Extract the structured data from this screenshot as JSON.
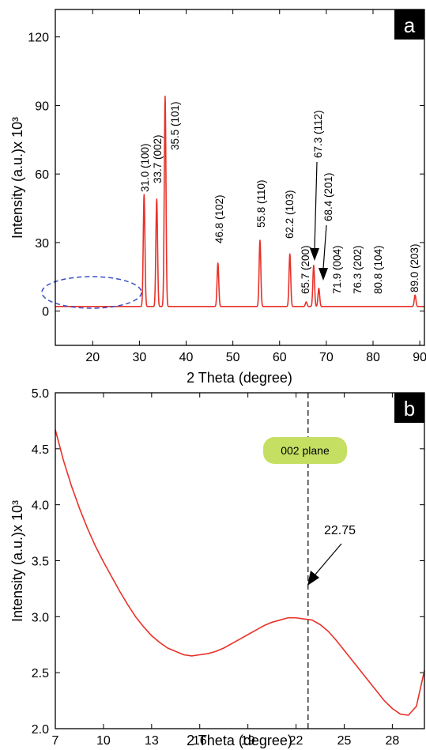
{
  "chart_data": [
    {
      "type": "line",
      "panel": "a",
      "xlabel": "2 Theta (degree)",
      "ylabel": "Intensity (a.u.)x 10³",
      "xlim": [
        12,
        91
      ],
      "ylim": [
        -15,
        132
      ],
      "x_ticks": [
        20,
        30,
        40,
        50,
        60,
        70,
        80,
        90
      ],
      "y_ticks": [
        0,
        30,
        60,
        90,
        120
      ],
      "series": [
        {
          "color": "#e8322a",
          "baseline": 2,
          "peaks": [
            {
              "x": 31.0,
              "y": 51
            },
            {
              "x": 33.7,
              "y": 49
            },
            {
              "x": 35.5,
              "y": 94
            },
            {
              "x": 46.8,
              "y": 21
            },
            {
              "x": 55.8,
              "y": 31
            },
            {
              "x": 62.2,
              "y": 25
            },
            {
              "x": 65.7,
              "y": 4
            },
            {
              "x": 67.3,
              "y": 20
            },
            {
              "x": 68.4,
              "y": 10
            },
            {
              "x": 71.9,
              "y": 2
            },
            {
              "x": 76.3,
              "y": 2
            },
            {
              "x": 80.8,
              "y": 2
            },
            {
              "x": 89.0,
              "y": 7
            }
          ]
        }
      ],
      "annotations": [
        {
          "text": "31.0 (100)"
        },
        {
          "text": "33.7 (002)"
        },
        {
          "text": "35.5 (101)"
        },
        {
          "text": "46.8 (102)"
        },
        {
          "text": "55.8 (110)"
        },
        {
          "text": "62.2 (103)"
        },
        {
          "text": "65.7 (200)"
        },
        {
          "text": "67.3 (112)"
        },
        {
          "text": "68.4 (201)"
        },
        {
          "text": "71.9 (004)"
        },
        {
          "text": "76.3 (202)"
        },
        {
          "text": "80.8 (104)"
        },
        {
          "text": "89.0 (203)"
        }
      ]
    },
    {
      "type": "line",
      "panel": "b",
      "xlabel": "2 Theta (degree)",
      "ylabel": "Intensity (a.u.)x 10³",
      "xlim": [
        7,
        30
      ],
      "ylim": [
        2.0,
        5.0
      ],
      "x_ticks": [
        7,
        10,
        13,
        16,
        19,
        22,
        25,
        28
      ],
      "y_ticks": [
        2.0,
        2.5,
        3.0,
        3.5,
        4.0,
        4.5,
        5.0
      ],
      "series": [
        {
          "color": "#e8322a",
          "x": [
            7,
            7.5,
            8,
            8.5,
            9,
            9.5,
            10,
            10.5,
            11,
            11.5,
            12,
            12.5,
            13,
            13.5,
            14,
            14.5,
            15,
            15.5,
            16,
            16.5,
            17,
            17.5,
            18,
            18.5,
            19,
            19.5,
            20,
            20.5,
            21,
            21.5,
            22,
            22.5,
            23,
            23.5,
            24,
            24.5,
            25,
            25.5,
            26,
            26.5,
            27,
            27.5,
            28,
            28.5,
            29,
            29.5,
            30
          ],
          "y": [
            4.67,
            4.4,
            4.17,
            3.97,
            3.79,
            3.63,
            3.49,
            3.36,
            3.23,
            3.11,
            3.0,
            2.91,
            2.83,
            2.77,
            2.72,
            2.69,
            2.66,
            2.65,
            2.66,
            2.67,
            2.69,
            2.72,
            2.76,
            2.8,
            2.84,
            2.88,
            2.92,
            2.95,
            2.97,
            2.99,
            2.99,
            2.98,
            2.97,
            2.93,
            2.87,
            2.79,
            2.7,
            2.61,
            2.52,
            2.43,
            2.34,
            2.25,
            2.18,
            2.13,
            2.12,
            2.2,
            2.52
          ]
        }
      ],
      "annotations": [
        {
          "text": "002 plane"
        },
        {
          "text": "22.75",
          "x": 22.75,
          "y": 2.99
        }
      ],
      "reference_line_x": 22.75
    }
  ]
}
